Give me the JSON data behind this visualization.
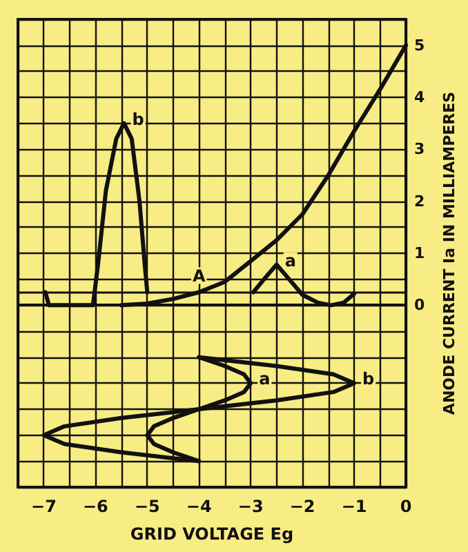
{
  "chart_data": {
    "type": "line",
    "xlabel": "GRID VOLTAGE Eg",
    "ylabel": "ANODE CURRENT Ia IN MILLIAMPERES",
    "xlim": [
      -7.5,
      0
    ],
    "ylim": [
      -3.5,
      5.5
    ],
    "xticks": [
      {
        "value": -7.5,
        "label": null
      },
      -7,
      {
        "value": -6.5,
        "label": null
      },
      -6,
      {
        "value": -5.5,
        "label": null
      },
      -5,
      {
        "value": -4.5,
        "label": null
      },
      -4,
      {
        "value": -3.5,
        "label": null
      },
      -3,
      {
        "value": -2.5,
        "label": null
      },
      -2,
      {
        "value": -1.5,
        "label": null
      },
      -1,
      {
        "value": -0.5,
        "label": null
      },
      0
    ],
    "yticks": [
      {
        "value": -3.5,
        "label": null
      },
      {
        "value": -3,
        "label": null
      },
      {
        "value": -2.5,
        "label": null
      },
      {
        "value": -2,
        "label": null
      },
      {
        "value": -1.5,
        "label": null
      },
      {
        "value": -1,
        "label": null
      },
      {
        "value": -0.5,
        "label": null
      },
      0,
      {
        "value": 0.5,
        "label": null
      },
      1,
      {
        "value": 1.5,
        "label": null
      },
      2,
      {
        "value": 2.5,
        "label": null
      },
      3,
      {
        "value": 3.5,
        "label": null
      },
      4,
      {
        "value": 4.5,
        "label": null
      },
      5,
      {
        "value": 5.5,
        "label": null
      }
    ],
    "grid": true,
    "series": [
      {
        "color": "#111111",
        "x": [
          -5.5,
          -5,
          -4.5,
          -4,
          -3.5,
          -3,
          -2.5,
          -2,
          -1.5,
          -1,
          -0.5,
          0
        ],
        "values": [
          0,
          0.03,
          0.12,
          0.25,
          0.45,
          0.85,
          1.25,
          1.75,
          2.5,
          3.35,
          4.15,
          5
        ]
      },
      {
        "color": "#111111",
        "x": [
          -6.97,
          -6.9,
          -6.05,
          -5.95,
          -5.8,
          -5.6,
          -5.45,
          -5.3,
          -5.15,
          -5.05,
          -5.0
        ],
        "values": [
          0.25,
          0,
          0,
          0.8,
          2.2,
          3.2,
          3.5,
          3.2,
          2.0,
          0.8,
          0.25
        ]
      },
      {
        "color": "#111111",
        "x": [
          -2.95,
          -2.7,
          -2.5,
          -2.3,
          -2.0,
          -1.7,
          -1.45,
          -1.2,
          -1.0
        ],
        "values": [
          0.25,
          0.55,
          0.78,
          0.55,
          0.2,
          0.05,
          0,
          0.05,
          0.22
        ]
      },
      {
        "color": "#111111",
        "x": [
          -4,
          -3.5,
          -3.13,
          -3,
          -3.13,
          -3.5,
          -4,
          -4.5,
          -4.87,
          -5,
          -4.87,
          -4.5,
          -4
        ],
        "values": [
          -1,
          -1.17,
          -1.33,
          -1.5,
          -1.67,
          -1.83,
          -2,
          -2.17,
          -2.33,
          -2.5,
          -2.67,
          -2.83,
          -3
        ]
      },
      {
        "color": "#111111",
        "x": [
          -4,
          -2.5,
          -1.4,
          -1,
          -1.4,
          -2.5,
          -4,
          -5.5,
          -6.6,
          -7,
          -6.6,
          -5.5,
          -4
        ],
        "values": [
          -1,
          -1.17,
          -1.33,
          -1.5,
          -1.67,
          -1.83,
          -2,
          -2.17,
          -2.33,
          -2.5,
          -2.67,
          -2.83,
          -3
        ]
      }
    ],
    "ref_lines": [
      {
        "axis": "y",
        "value": 0.25,
        "color": "#111111"
      }
    ],
    "annotations": [
      {
        "text": "A",
        "x": -4,
        "y": 0.25
      },
      {
        "text": "a",
        "x": -2.5,
        "y": 0.78
      },
      {
        "text": "b",
        "x": -5.45,
        "y": 3.5
      },
      {
        "text": "a",
        "x": -3,
        "y": -1.5
      },
      {
        "text": "b",
        "x": -1,
        "y": -1.5
      }
    ]
  }
}
